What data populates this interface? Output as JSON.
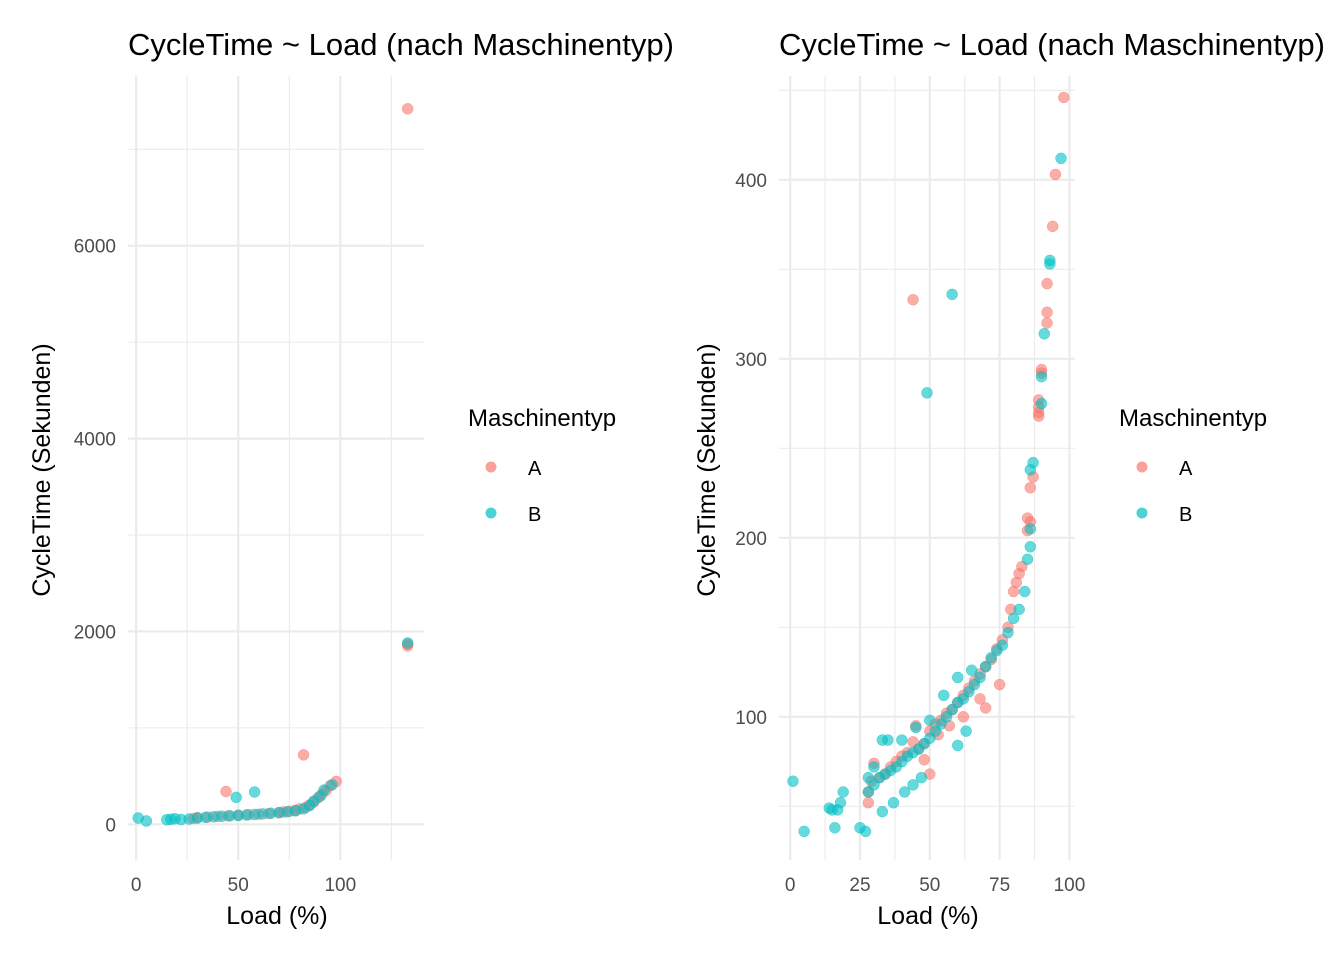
{
  "chart_data": [
    {
      "type": "scatter",
      "title": "CycleTime ~ Load (nach Maschinentyp)",
      "xlabel": "Load (%)",
      "ylabel": "CycleTime (Sekunden)",
      "xlim": [
        -4,
        141
      ],
      "ylim": [
        -370,
        7760
      ],
      "xticks": [
        0,
        50,
        100
      ],
      "xtick_labels": [
        "0",
        "50",
        "100"
      ],
      "xminor": [
        25,
        75,
        125
      ],
      "yticks": [
        0,
        2000,
        4000,
        6000
      ],
      "ytick_labels": [
        "0",
        "2000",
        "4000",
        "6000"
      ],
      "yminor": [
        1000,
        3000,
        5000,
        7000
      ],
      "grid": true,
      "legend": {
        "title": "Maschinentyp",
        "position": "right",
        "entries": [
          "A",
          "B"
        ]
      },
      "series": [
        {
          "name": "A",
          "color": "#F8766D",
          "points": [
            [
              133,
              7420
            ],
            [
              133,
              1870
            ],
            [
              133,
              1850
            ],
            [
              82,
              720
            ],
            [
              44,
              340
            ],
            [
              98,
              445
            ],
            [
              95,
              400
            ],
            [
              93,
              350
            ],
            [
              91,
              310
            ],
            [
              89,
              275
            ],
            [
              87,
              230
            ],
            [
              85,
              200
            ],
            [
              83,
              175
            ],
            [
              80,
              160
            ],
            [
              78,
              145
            ],
            [
              75,
              135
            ],
            [
              72,
              128
            ],
            [
              70,
              120
            ],
            [
              65,
              112
            ],
            [
              60,
              105
            ],
            [
              55,
              100
            ],
            [
              50,
              95
            ],
            [
              45,
              88
            ],
            [
              40,
              82
            ],
            [
              35,
              75
            ],
            [
              30,
              70
            ],
            [
              28,
              60
            ]
          ]
        },
        {
          "name": "B",
          "color": "#00BFC4",
          "points": [
            [
              133,
              1880
            ],
            [
              58,
              335
            ],
            [
              49,
              280
            ],
            [
              96,
              410
            ],
            [
              92,
              355
            ],
            [
              90,
              290
            ],
            [
              87,
              240
            ],
            [
              85,
              195
            ],
            [
              82,
              160
            ],
            [
              78,
              140
            ],
            [
              74,
              130
            ],
            [
              70,
              122
            ],
            [
              66,
              115
            ],
            [
              62,
              108
            ],
            [
              58,
              102
            ],
            [
              54,
              97
            ],
            [
              50,
              92
            ],
            [
              46,
              88
            ],
            [
              42,
              84
            ],
            [
              38,
              78
            ],
            [
              34,
              72
            ],
            [
              30,
              65
            ],
            [
              26,
              55
            ],
            [
              22,
              50
            ],
            [
              19,
              58
            ],
            [
              17,
              52
            ],
            [
              15,
              48
            ],
            [
              1,
              65
            ],
            [
              5,
              35
            ]
          ]
        }
      ]
    },
    {
      "type": "scatter",
      "title": "CycleTime ~ Load (nach Maschinentyp)",
      "xlabel": "Load (%)",
      "ylabel": "CycleTime (Sekunden)",
      "xlim": [
        -4,
        102
      ],
      "ylim": [
        20,
        458
      ],
      "xticks": [
        0,
        25,
        50,
        75,
        100
      ],
      "xtick_labels": [
        "0",
        "25",
        "50",
        "75",
        "100"
      ],
      "xminor": [
        12.5,
        37.5,
        62.5,
        87.5
      ],
      "yticks": [
        100,
        200,
        300,
        400
      ],
      "ytick_labels": [
        "100",
        "200",
        "300",
        "400"
      ],
      "yminor": [
        50,
        150,
        250,
        350,
        450
      ],
      "grid": true,
      "legend": {
        "title": "Maschinentyp",
        "position": "right",
        "entries": [
          "A",
          "B"
        ]
      },
      "series": [
        {
          "name": "A",
          "color": "#F8766D",
          "points": [
            [
              98,
              446
            ],
            [
              95,
              403
            ],
            [
              94,
              374
            ],
            [
              92,
              342
            ],
            [
              92,
              326
            ],
            [
              92,
              320
            ],
            [
              90,
              294
            ],
            [
              90,
              292
            ],
            [
              89,
              277
            ],
            [
              89,
              273
            ],
            [
              89,
              270
            ],
            [
              89,
              268
            ],
            [
              44,
              333
            ],
            [
              87,
              234
            ],
            [
              86,
              228
            ],
            [
              85,
              211
            ],
            [
              86,
              209
            ],
            [
              85,
              204
            ],
            [
              83,
              184
            ],
            [
              82,
              180
            ],
            [
              81,
              175
            ],
            [
              80,
              170
            ],
            [
              79,
              160
            ],
            [
              78,
              150
            ],
            [
              76,
              143
            ],
            [
              74,
              138
            ],
            [
              72,
              132
            ],
            [
              70,
              128
            ],
            [
              68,
              124
            ],
            [
              66,
              120
            ],
            [
              64,
              116
            ],
            [
              62,
              112
            ],
            [
              60,
              108
            ],
            [
              58,
              104
            ],
            [
              56,
              102
            ],
            [
              54,
              98
            ],
            [
              52,
              96
            ],
            [
              50,
              92
            ],
            [
              50,
              68
            ],
            [
              48,
              85
            ],
            [
              46,
              82
            ],
            [
              44,
              86
            ],
            [
              42,
              80
            ],
            [
              40,
              78
            ],
            [
              38,
              75
            ],
            [
              36,
              72
            ],
            [
              34,
              68
            ],
            [
              32,
              66
            ],
            [
              30,
              74
            ],
            [
              29,
              64
            ],
            [
              28,
              58
            ],
            [
              28,
              52
            ],
            [
              70,
              105
            ],
            [
              75,
              118
            ],
            [
              68,
              110
            ],
            [
              62,
              100
            ],
            [
              57,
              95
            ],
            [
              53,
              90
            ],
            [
              48,
              76
            ],
            [
              45,
              95
            ]
          ]
        },
        {
          "name": "B",
          "color": "#00BFC4",
          "points": [
            [
              97,
              412
            ],
            [
              93,
              355
            ],
            [
              93,
              353
            ],
            [
              91,
              314
            ],
            [
              90,
              290
            ],
            [
              90,
              275
            ],
            [
              58,
              336
            ],
            [
              49,
              281
            ],
            [
              87,
              242
            ],
            [
              86,
              238
            ],
            [
              86,
              205
            ],
            [
              86,
              195
            ],
            [
              85,
              188
            ],
            [
              84,
              170
            ],
            [
              82,
              160
            ],
            [
              80,
              155
            ],
            [
              78,
              147
            ],
            [
              76,
              140
            ],
            [
              74,
              137
            ],
            [
              72,
              133
            ],
            [
              70,
              128
            ],
            [
              68,
              122
            ],
            [
              66,
              118
            ],
            [
              64,
              114
            ],
            [
              62,
              110
            ],
            [
              60,
              108
            ],
            [
              58,
              104
            ],
            [
              56,
              100
            ],
            [
              54,
              96
            ],
            [
              52,
              92
            ],
            [
              50,
              88
            ],
            [
              48,
              85
            ],
            [
              46,
              82
            ],
            [
              44,
              80
            ],
            [
              42,
              78
            ],
            [
              40,
              75
            ],
            [
              38,
              72
            ],
            [
              36,
              70
            ],
            [
              34,
              68
            ],
            [
              32,
              66
            ],
            [
              30,
              72
            ],
            [
              30,
              62
            ],
            [
              28,
              66
            ],
            [
              28,
              58
            ],
            [
              33,
              87
            ],
            [
              35,
              87
            ],
            [
              40,
              87
            ],
            [
              45,
              94
            ],
            [
              50,
              98
            ],
            [
              55,
              112
            ],
            [
              60,
              122
            ],
            [
              65,
              126
            ],
            [
              33,
              47
            ],
            [
              37,
              52
            ],
            [
              41,
              58
            ],
            [
              44,
              62
            ],
            [
              47,
              66
            ],
            [
              60,
              84
            ],
            [
              63,
              92
            ],
            [
              19,
              58
            ],
            [
              18,
              52
            ],
            [
              17,
              48
            ],
            [
              14,
              49
            ],
            [
              15,
              48
            ],
            [
              1,
              64
            ],
            [
              5,
              36
            ],
            [
              16,
              38
            ],
            [
              25,
              38
            ],
            [
              27,
              36
            ]
          ]
        }
      ]
    }
  ]
}
